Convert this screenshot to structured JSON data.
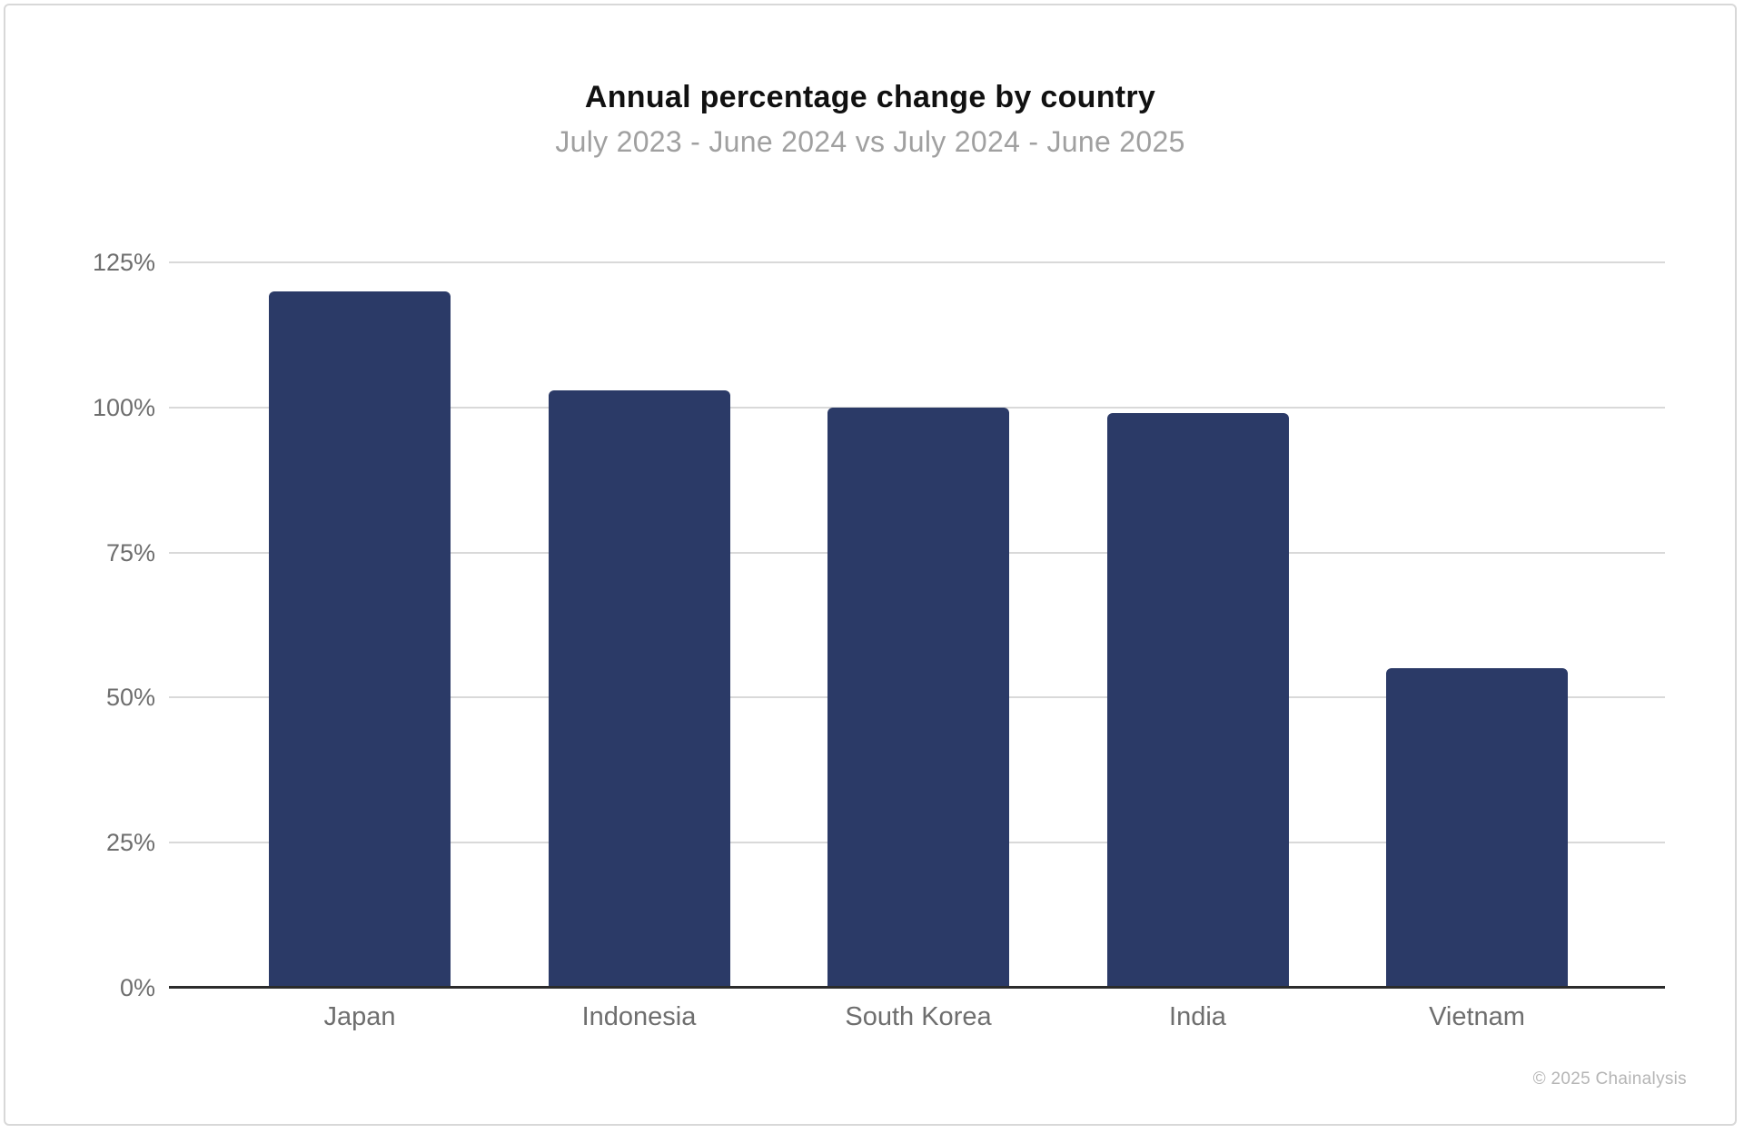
{
  "chart": {
    "title": "Annual percentage change by country",
    "subtitle": "July 2023 - June 2024 vs July 2024 - June 2025",
    "copyright": "© 2025 Chainalysis"
  },
  "colors": {
    "bar": "#2b3a67",
    "grid": "#d9d9d9",
    "axis": "#2b2b2b",
    "title_text": "#111111",
    "subtitle_text": "#a0a0a0",
    "tick_text": "#6e6e6e",
    "copyright_text": "#b5b5b5"
  },
  "chart_data": {
    "type": "bar",
    "title": "Annual percentage change by country",
    "subtitle": "July 2023 - June 2024 vs July 2024 - June 2025",
    "categories": [
      "Japan",
      "Indonesia",
      "South Korea",
      "India",
      "Vietnam"
    ],
    "values": [
      120,
      103,
      100,
      99,
      55
    ],
    "unit": "%",
    "xlabel": "",
    "ylabel": "",
    "ylim": [
      0,
      125
    ],
    "yticks": [
      {
        "value": 0,
        "label": "0%"
      },
      {
        "value": 25,
        "label": "25%"
      },
      {
        "value": 50,
        "label": "50%"
      },
      {
        "value": 75,
        "label": "75%"
      },
      {
        "value": 100,
        "label": "100%"
      },
      {
        "value": 125,
        "label": "125%"
      }
    ],
    "grid": "horizontal",
    "legend_position": "none",
    "bar_color": "#2b3a67",
    "annotation": "© 2025 Chainalysis"
  }
}
